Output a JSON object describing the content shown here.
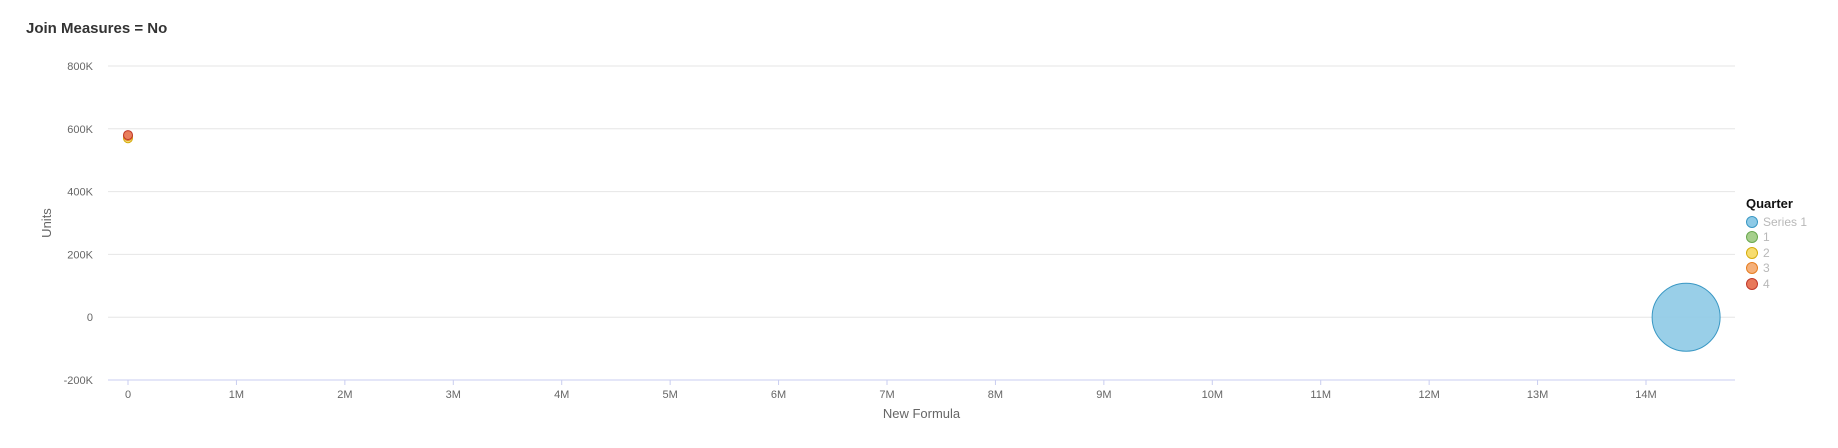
{
  "title": "Join Measures = No",
  "chart_data": {
    "type": "scatter",
    "xlabel": "New Formula",
    "ylabel": "Units",
    "xlim": [
      0,
      14800000
    ],
    "ylim": [
      -200000,
      800000
    ],
    "x_ticks": [
      0,
      1000000,
      2000000,
      3000000,
      4000000,
      5000000,
      6000000,
      7000000,
      8000000,
      9000000,
      10000000,
      11000000,
      12000000,
      13000000,
      14000000
    ],
    "x_tick_labels": [
      "0",
      "1M",
      "2M",
      "3M",
      "4M",
      "5M",
      "6M",
      "7M",
      "8M",
      "9M",
      "10M",
      "11M",
      "12M",
      "13M",
      "14M"
    ],
    "y_ticks": [
      -200000,
      0,
      200000,
      400000,
      600000,
      800000
    ],
    "y_tick_labels": [
      "-200K",
      "0",
      "200K",
      "400K",
      "600K",
      "800K"
    ],
    "grid": true,
    "legend_title": "Quarter",
    "legend_position": "right",
    "series": [
      {
        "name": "Series 1",
        "color": "#8ecae6",
        "stroke": "#3a98c4",
        "points": [
          {
            "x": 14370000,
            "y": 0,
            "size": "large"
          }
        ]
      },
      {
        "name": "1",
        "color": "#a6cf8c",
        "stroke": "#6aa84f",
        "points": [
          {
            "x": 0,
            "y": 575000,
            "size": "small"
          }
        ]
      },
      {
        "name": "2",
        "color": "#f7dc6f",
        "stroke": "#d4ac0d",
        "points": [
          {
            "x": 0,
            "y": 570000,
            "size": "small"
          }
        ]
      },
      {
        "name": "3",
        "color": "#f5b07a",
        "stroke": "#e67e22",
        "points": [
          {
            "x": 0,
            "y": 577000,
            "size": "small"
          }
        ]
      },
      {
        "name": "4",
        "color": "#e8785a",
        "stroke": "#c0392b",
        "points": [
          {
            "x": 0,
            "y": 580000,
            "size": "small"
          }
        ]
      }
    ]
  }
}
